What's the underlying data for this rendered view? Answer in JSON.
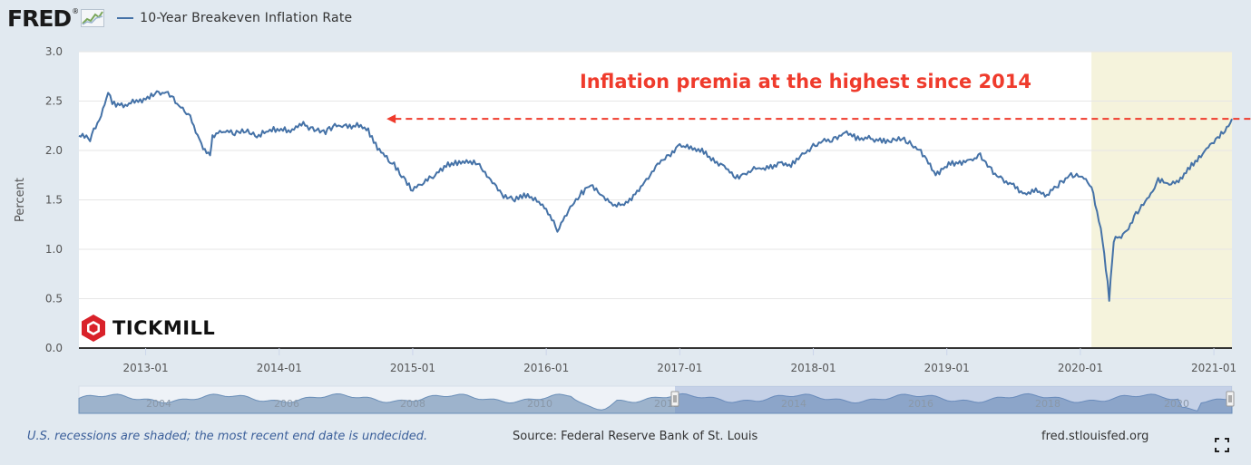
{
  "header": {
    "logo_text": "FRED",
    "logo_mark": "®",
    "legend_label": "10-Year Breakeven Inflation Rate"
  },
  "watermark": {
    "text": "TICKMILL"
  },
  "footer": {
    "note": "U.S. recessions are shaded; the most recent end date is undecided.",
    "source": "Source: Federal Reserve Bank of St. Louis",
    "link": "fred.stlouisfed.org"
  },
  "icons": {
    "fullscreen": "expand-icon",
    "spark": "line-chart-icon",
    "tickmill": "hexagon-logo-icon"
  },
  "colors": {
    "series": "#4572a7",
    "annotation": "#ef3b2c",
    "recession_shade": "#f5f3dc",
    "navigator_fill": "#9db3cc"
  },
  "chart_data": {
    "type": "line",
    "title": "",
    "xlabel": "",
    "ylabel": "Percent",
    "ylim": [
      0,
      3
    ],
    "yticks": [
      "0.0",
      "0.5",
      "1.0",
      "1.5",
      "2.0",
      "2.5",
      "3.0"
    ],
    "xticks": [
      "2013-01",
      "2014-01",
      "2015-01",
      "2016-01",
      "2017-01",
      "2018-01",
      "2019-01",
      "2020-01",
      "2021-01"
    ],
    "xlim": [
      "2012-07",
      "2021-02-20"
    ],
    "grid": true,
    "annotation": {
      "text": "Inflation premia at the highest since 2014",
      "value": 2.32,
      "from": "2021-02",
      "to": "2014-10"
    },
    "recession_shading": {
      "start": "2020-02",
      "end": "2021-02-20",
      "label": "U.S. recessions are shaded; the most recent end date is undecided."
    },
    "navigator": {
      "ticks": [
        "2004",
        "2006",
        "2008",
        "2010",
        "2012",
        "2014",
        "2016",
        "2018",
        "2020"
      ],
      "selected_from": "2012-07",
      "selected_to": "2021-02"
    },
    "series": [
      {
        "name": "10-Year Breakeven Inflation Rate",
        "points": [
          [
            "2012-07",
            2.15
          ],
          [
            "2012-08",
            2.12
          ],
          [
            "2012-09",
            2.35
          ],
          [
            "2012-09-20",
            2.6
          ],
          [
            "2012-10",
            2.48
          ],
          [
            "2012-11",
            2.45
          ],
          [
            "2012-12",
            2.5
          ],
          [
            "2013-01",
            2.52
          ],
          [
            "2013-02",
            2.58
          ],
          [
            "2013-03",
            2.58
          ],
          [
            "2013-04",
            2.45
          ],
          [
            "2013-05",
            2.35
          ],
          [
            "2013-06",
            2.05
          ],
          [
            "2013-06-25",
            1.95
          ],
          [
            "2013-07",
            2.15
          ],
          [
            "2013-08",
            2.2
          ],
          [
            "2013-09",
            2.18
          ],
          [
            "2013-10",
            2.2
          ],
          [
            "2013-11",
            2.15
          ],
          [
            "2013-12",
            2.2
          ],
          [
            "2014-01",
            2.22
          ],
          [
            "2014-02",
            2.2
          ],
          [
            "2014-03",
            2.27
          ],
          [
            "2014-04",
            2.22
          ],
          [
            "2014-05",
            2.18
          ],
          [
            "2014-06",
            2.25
          ],
          [
            "2014-07",
            2.25
          ],
          [
            "2014-08",
            2.25
          ],
          [
            "2014-09",
            2.2
          ],
          [
            "2014-10",
            2.0
          ],
          [
            "2014-11",
            1.9
          ],
          [
            "2014-12",
            1.75
          ],
          [
            "2015-01",
            1.6
          ],
          [
            "2015-02",
            1.68
          ],
          [
            "2015-03",
            1.75
          ],
          [
            "2015-04",
            1.85
          ],
          [
            "2015-05",
            1.88
          ],
          [
            "2015-06",
            1.9
          ],
          [
            "2015-07",
            1.85
          ],
          [
            "2015-08",
            1.7
          ],
          [
            "2015-09",
            1.55
          ],
          [
            "2015-10",
            1.5
          ],
          [
            "2015-11",
            1.55
          ],
          [
            "2015-12",
            1.5
          ],
          [
            "2016-01",
            1.4
          ],
          [
            "2016-02",
            1.2
          ],
          [
            "2016-03",
            1.4
          ],
          [
            "2016-04",
            1.55
          ],
          [
            "2016-05",
            1.65
          ],
          [
            "2016-06",
            1.55
          ],
          [
            "2016-07",
            1.45
          ],
          [
            "2016-08",
            1.45
          ],
          [
            "2016-09",
            1.55
          ],
          [
            "2016-10",
            1.7
          ],
          [
            "2016-11",
            1.85
          ],
          [
            "2016-12",
            1.95
          ],
          [
            "2017-01",
            2.05
          ],
          [
            "2017-02",
            2.02
          ],
          [
            "2017-03",
            2.0
          ],
          [
            "2017-04",
            1.9
          ],
          [
            "2017-05",
            1.85
          ],
          [
            "2017-06",
            1.72
          ],
          [
            "2017-07",
            1.78
          ],
          [
            "2017-08",
            1.82
          ],
          [
            "2017-09",
            1.82
          ],
          [
            "2017-10",
            1.88
          ],
          [
            "2017-11",
            1.85
          ],
          [
            "2017-12",
            1.95
          ],
          [
            "2018-01",
            2.05
          ],
          [
            "2018-02",
            2.1
          ],
          [
            "2018-03",
            2.12
          ],
          [
            "2018-04",
            2.18
          ],
          [
            "2018-05",
            2.12
          ],
          [
            "2018-06",
            2.12
          ],
          [
            "2018-07",
            2.1
          ],
          [
            "2018-08",
            2.1
          ],
          [
            "2018-09",
            2.12
          ],
          [
            "2018-10",
            2.05
          ],
          [
            "2018-11",
            1.95
          ],
          [
            "2018-12",
            1.75
          ],
          [
            "2019-01",
            1.85
          ],
          [
            "2019-02",
            1.88
          ],
          [
            "2019-03",
            1.88
          ],
          [
            "2019-04",
            1.95
          ],
          [
            "2019-05",
            1.8
          ],
          [
            "2019-06",
            1.7
          ],
          [
            "2019-07",
            1.65
          ],
          [
            "2019-08",
            1.55
          ],
          [
            "2019-09",
            1.6
          ],
          [
            "2019-10",
            1.55
          ],
          [
            "2019-11",
            1.65
          ],
          [
            "2019-12",
            1.75
          ],
          [
            "2020-01",
            1.75
          ],
          [
            "2020-02",
            1.65
          ],
          [
            "2020-03",
            1.1
          ],
          [
            "2020-03-19",
            0.5
          ],
          [
            "2020-04",
            1.1
          ],
          [
            "2020-05",
            1.15
          ],
          [
            "2020-06",
            1.35
          ],
          [
            "2020-07",
            1.5
          ],
          [
            "2020-08",
            1.7
          ],
          [
            "2020-09",
            1.65
          ],
          [
            "2020-10",
            1.7
          ],
          [
            "2020-11",
            1.85
          ],
          [
            "2020-12",
            1.98
          ],
          [
            "2021-01",
            2.1
          ],
          [
            "2021-02",
            2.2
          ],
          [
            "2021-02-20",
            2.32
          ]
        ]
      }
    ]
  }
}
